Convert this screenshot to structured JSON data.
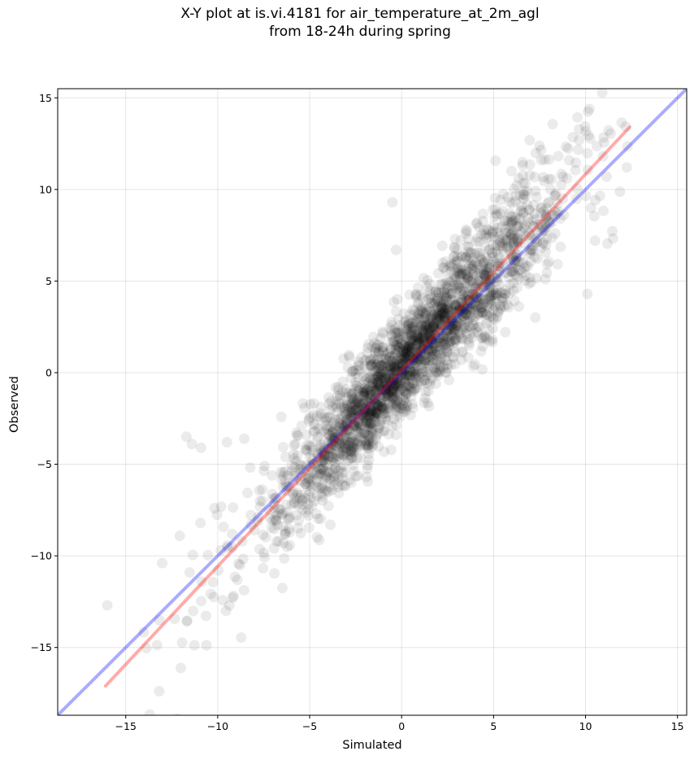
{
  "chart_data": {
    "type": "scatter",
    "title_line1": "X-Y plot at is.vi.4181 for air_temperature_at_2m_agl",
    "title_line2": "from 18-24h during spring",
    "xlabel": "Simulated",
    "ylabel": "Observed",
    "xlim": [
      -18.7,
      15.5
    ],
    "ylim": [
      -18.7,
      15.5
    ],
    "xticks": [
      -15,
      -10,
      -5,
      0,
      5,
      10,
      15
    ],
    "yticks": [
      -15,
      -10,
      -5,
      0,
      5,
      10,
      15
    ],
    "tick_labels": [
      "−15",
      "−10",
      "−5",
      "0",
      "5",
      "10",
      "15"
    ],
    "grid": true,
    "legend": "none",
    "points": {
      "color": "#000000",
      "count_approx": 2500,
      "trend_center": {
        "slope": 1.1,
        "intercept": 0.2
      },
      "x_range": [
        -16,
        12.4
      ]
    },
    "lines": [
      {
        "kind": "one-to-one",
        "color": "#0000ff",
        "x": [
          -18.7,
          15.5
        ],
        "y": [
          -18.7,
          15.5
        ]
      },
      {
        "kind": "regression",
        "color": "#ff0000",
        "x": [
          -16.1,
          12.4
        ],
        "y": [
          -17.1,
          13.4
        ]
      }
    ]
  }
}
